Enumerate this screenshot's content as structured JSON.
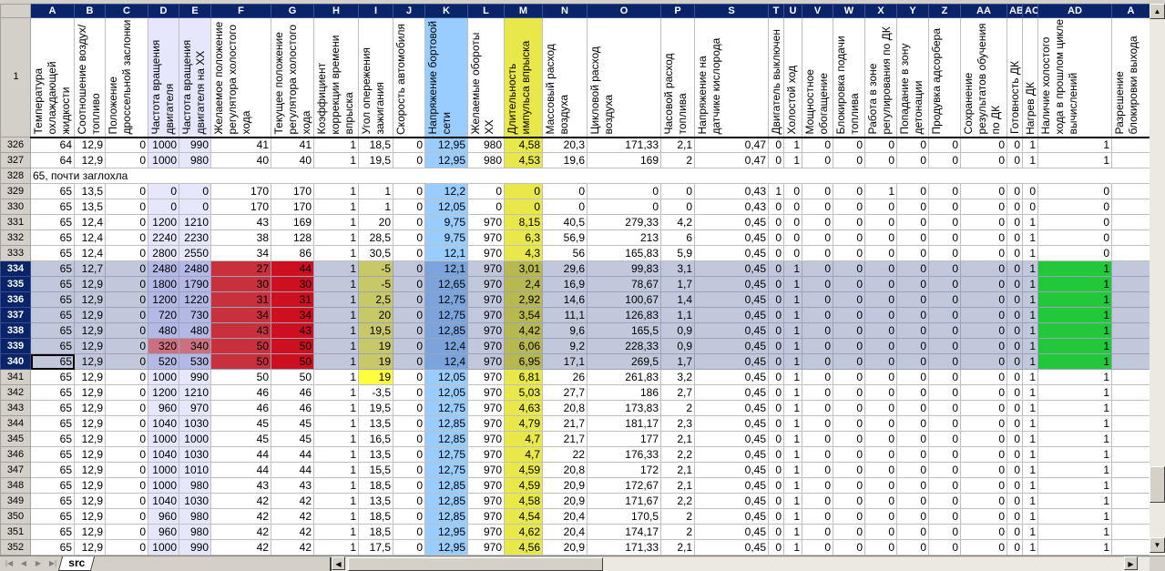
{
  "sheet": {
    "tab_name": "src",
    "active_cell": "A340",
    "selected_rows": [
      334,
      335,
      336,
      337,
      338,
      339,
      340
    ]
  },
  "columns": [
    {
      "letter": "A",
      "header": "Температура охлаждающей жидкости"
    },
    {
      "letter": "B",
      "header": "Соотношение воздух/топливо"
    },
    {
      "letter": "C",
      "header": "Положение дроссельной заслонки"
    },
    {
      "letter": "D",
      "header": "Частота вращения двигателя"
    },
    {
      "letter": "E",
      "header": "Частота вращения двигателя на XX"
    },
    {
      "letter": "F",
      "header": "Желаемое положение регулятора холостого хода"
    },
    {
      "letter": "G",
      "header": "Текущее положение регулятора холостого хода"
    },
    {
      "letter": "H",
      "header": "Коэффициент коррекции времени впрыска"
    },
    {
      "letter": "I",
      "header": "Угол опережения зажигания"
    },
    {
      "letter": "J",
      "header": "Скорость автомобиля"
    },
    {
      "letter": "K",
      "header": "Напряжение бортовой сети"
    },
    {
      "letter": "L",
      "header": "Желаемые обороты XX"
    },
    {
      "letter": "M",
      "header": "Длительность импульса впрыска"
    },
    {
      "letter": "N",
      "header": "Массовый расход воздуха"
    },
    {
      "letter": "O",
      "header": "Цикловой расход воздуха"
    },
    {
      "letter": "P",
      "header": "Часовой расход топлива"
    },
    {
      "letter": "S",
      "header": "Напряжение на датчике кислорода"
    },
    {
      "letter": "T",
      "header": "Двигатель выключен"
    },
    {
      "letter": "U",
      "header": "Холостой ход"
    },
    {
      "letter": "V",
      "header": "Мощностное обогащение"
    },
    {
      "letter": "W",
      "header": "Блокировка подачи топлива"
    },
    {
      "letter": "X",
      "header": "Работа в зоне регулирования по ДК"
    },
    {
      "letter": "Y",
      "header": "Попадание в зону детонации"
    },
    {
      "letter": "Z",
      "header": "Продувка адсорбера"
    },
    {
      "letter": "AA",
      "header": "Сохранение результатов обучения по ДК"
    },
    {
      "letter": "AB",
      "header": "Готовность ДК"
    },
    {
      "letter": "AC",
      "header": "Нагрев ДК"
    },
    {
      "letter": "AD",
      "header": "Наличие холостого хода в прошлом цикле вычислений"
    },
    {
      "letter": "A",
      "header": "Разрешение блокировки выхода"
    }
  ],
  "header_row_number": "1",
  "rows": [
    {
      "num": "326",
      "cells": [
        "64",
        "12,9",
        "0",
        "1000",
        "990",
        "41",
        "41",
        "1",
        "18,5",
        "0",
        "12,95",
        "980",
        "4,58",
        "20,3",
        "171,33",
        "2,1",
        "0,47",
        "0",
        "1",
        "0",
        "0",
        "0",
        "0",
        "0",
        "0",
        "0",
        "1",
        "1",
        ""
      ]
    },
    {
      "num": "327",
      "cells": [
        "64",
        "12,9",
        "0",
        "1000",
        "980",
        "40",
        "40",
        "1",
        "19,5",
        "0",
        "12,95",
        "980",
        "4,53",
        "19,6",
        "169",
        "2",
        "0,47",
        "0",
        "1",
        "0",
        "0",
        "0",
        "0",
        "0",
        "0",
        "0",
        "1",
        "1",
        ""
      ]
    },
    {
      "num": "328",
      "note": "65, почти заглохла"
    },
    {
      "num": "329",
      "cells": [
        "65",
        "13,5",
        "0",
        "0",
        "0",
        "170",
        "170",
        "1",
        "1",
        "0",
        "12,2",
        "0",
        "0",
        "0",
        "0",
        "0",
        "0,43",
        "1",
        "0",
        "0",
        "0",
        "1",
        "0",
        "0",
        "0",
        "0",
        "0",
        "0",
        ""
      ]
    },
    {
      "num": "330",
      "cells": [
        "65",
        "13,5",
        "0",
        "0",
        "0",
        "170",
        "170",
        "1",
        "1",
        "0",
        "12,05",
        "0",
        "0",
        "0",
        "0",
        "0",
        "0,43",
        "0",
        "0",
        "0",
        "0",
        "0",
        "0",
        "0",
        "0",
        "0",
        "0",
        "0",
        ""
      ]
    },
    {
      "num": "331",
      "cells": [
        "65",
        "12,4",
        "0",
        "1200",
        "1210",
        "43",
        "169",
        "1",
        "20",
        "0",
        "9,75",
        "970",
        "8,15",
        "40,5",
        "279,33",
        "4,2",
        "0,45",
        "0",
        "0",
        "0",
        "0",
        "0",
        "0",
        "0",
        "0",
        "0",
        "1",
        "0",
        ""
      ]
    },
    {
      "num": "332",
      "cells": [
        "65",
        "12,4",
        "0",
        "2240",
        "2230",
        "38",
        "128",
        "1",
        "28,5",
        "0",
        "9,75",
        "970",
        "6,3",
        "56,9",
        "213",
        "6",
        "0,45",
        "0",
        "0",
        "0",
        "0",
        "0",
        "0",
        "0",
        "0",
        "0",
        "1",
        "0",
        ""
      ]
    },
    {
      "num": "333",
      "cells": [
        "65",
        "12,4",
        "0",
        "2800",
        "2550",
        "34",
        "86",
        "1",
        "30,5",
        "0",
        "12,1",
        "970",
        "4,3",
        "56",
        "165,83",
        "5,9",
        "0,45",
        "0",
        "0",
        "0",
        "0",
        "0",
        "0",
        "0",
        "0",
        "0",
        "1",
        "0",
        ""
      ]
    },
    {
      "num": "334",
      "cells": [
        "65",
        "12,7",
        "0",
        "2480",
        "2480",
        "27",
        "44",
        "1",
        "-5",
        "0",
        "12,1",
        "970",
        "3,01",
        "29,6",
        "99,83",
        "3,1",
        "0,45",
        "0",
        "1",
        "0",
        "0",
        "0",
        "0",
        "0",
        "0",
        "0",
        "1",
        "1",
        ""
      ]
    },
    {
      "num": "335",
      "cells": [
        "65",
        "12,9",
        "0",
        "1800",
        "1790",
        "30",
        "30",
        "1",
        "-5",
        "0",
        "12,65",
        "970",
        "2,4",
        "16,9",
        "78,67",
        "1,7",
        "0,45",
        "0",
        "1",
        "0",
        "0",
        "0",
        "0",
        "0",
        "0",
        "0",
        "1",
        "1",
        ""
      ]
    },
    {
      "num": "336",
      "cells": [
        "65",
        "12,9",
        "0",
        "1200",
        "1220",
        "31",
        "31",
        "1",
        "2,5",
        "0",
        "12,75",
        "970",
        "2,92",
        "14,6",
        "100,67",
        "1,4",
        "0,45",
        "0",
        "1",
        "0",
        "0",
        "0",
        "0",
        "0",
        "0",
        "0",
        "1",
        "1",
        ""
      ]
    },
    {
      "num": "337",
      "cells": [
        "65",
        "12,9",
        "0",
        "720",
        "730",
        "34",
        "34",
        "1",
        "20",
        "0",
        "12,75",
        "970",
        "3,54",
        "11,1",
        "126,83",
        "1,1",
        "0,45",
        "0",
        "1",
        "0",
        "0",
        "0",
        "0",
        "0",
        "0",
        "0",
        "1",
        "1",
        ""
      ]
    },
    {
      "num": "338",
      "cells": [
        "65",
        "12,9",
        "0",
        "480",
        "480",
        "43",
        "43",
        "1",
        "19,5",
        "0",
        "12,85",
        "970",
        "4,42",
        "9,6",
        "165,5",
        "0,9",
        "0,45",
        "0",
        "1",
        "0",
        "0",
        "0",
        "0",
        "0",
        "0",
        "0",
        "1",
        "1",
        ""
      ]
    },
    {
      "num": "339",
      "cells": [
        "65",
        "12,9",
        "0",
        "320",
        "340",
        "50",
        "50",
        "1",
        "19",
        "0",
        "12,4",
        "970",
        "6,06",
        "9,2",
        "228,33",
        "0,9",
        "0,45",
        "0",
        "1",
        "0",
        "0",
        "0",
        "0",
        "0",
        "0",
        "0",
        "1",
        "1",
        ""
      ]
    },
    {
      "num": "340",
      "cells": [
        "65",
        "12,9",
        "0",
        "520",
        "530",
        "50",
        "50",
        "1",
        "19",
        "0",
        "12,4",
        "970",
        "6,95",
        "17,1",
        "269,5",
        "1,7",
        "0,45",
        "0",
        "1",
        "0",
        "0",
        "0",
        "0",
        "0",
        "0",
        "0",
        "1",
        "1",
        ""
      ]
    },
    {
      "num": "341",
      "cells": [
        "65",
        "12,9",
        "0",
        "1000",
        "990",
        "50",
        "50",
        "1",
        "19",
        "0",
        "12,05",
        "970",
        "6,81",
        "26",
        "261,83",
        "3,2",
        "0,45",
        "0",
        "1",
        "0",
        "0",
        "0",
        "0",
        "0",
        "0",
        "0",
        "1",
        "1",
        ""
      ]
    },
    {
      "num": "342",
      "cells": [
        "65",
        "12,9",
        "0",
        "1200",
        "1210",
        "46",
        "46",
        "1",
        "-3,5",
        "0",
        "12,05",
        "970",
        "5,03",
        "27,7",
        "186",
        "2,7",
        "0,45",
        "0",
        "1",
        "0",
        "0",
        "0",
        "0",
        "0",
        "0",
        "0",
        "1",
        "1",
        ""
      ]
    },
    {
      "num": "343",
      "cells": [
        "65",
        "12,9",
        "0",
        "960",
        "970",
        "46",
        "46",
        "1",
        "19,5",
        "0",
        "12,75",
        "970",
        "4,63",
        "20,8",
        "173,83",
        "2",
        "0,45",
        "0",
        "1",
        "0",
        "0",
        "0",
        "0",
        "0",
        "0",
        "0",
        "1",
        "1",
        ""
      ]
    },
    {
      "num": "344",
      "cells": [
        "65",
        "12,9",
        "0",
        "1040",
        "1030",
        "45",
        "45",
        "1",
        "13,5",
        "0",
        "12,85",
        "970",
        "4,79",
        "21,7",
        "181,17",
        "2,3",
        "0,45",
        "0",
        "1",
        "0",
        "0",
        "0",
        "0",
        "0",
        "0",
        "0",
        "1",
        "1",
        ""
      ]
    },
    {
      "num": "345",
      "cells": [
        "65",
        "12,9",
        "0",
        "1000",
        "1000",
        "45",
        "45",
        "1",
        "16,5",
        "0",
        "12,85",
        "970",
        "4,7",
        "21,7",
        "177",
        "2,1",
        "0,45",
        "0",
        "1",
        "0",
        "0",
        "0",
        "0",
        "0",
        "0",
        "0",
        "1",
        "1",
        ""
      ]
    },
    {
      "num": "346",
      "cells": [
        "65",
        "12,9",
        "0",
        "1040",
        "1030",
        "44",
        "44",
        "1",
        "13,5",
        "0",
        "12,75",
        "970",
        "4,7",
        "22",
        "176,33",
        "2,2",
        "0,45",
        "0",
        "1",
        "0",
        "0",
        "0",
        "0",
        "0",
        "0",
        "0",
        "1",
        "1",
        ""
      ]
    },
    {
      "num": "347",
      "cells": [
        "65",
        "12,9",
        "0",
        "1000",
        "1010",
        "44",
        "44",
        "1",
        "15,5",
        "0",
        "12,75",
        "970",
        "4,59",
        "20,8",
        "172",
        "2,1",
        "0,45",
        "0",
        "1",
        "0",
        "0",
        "0",
        "0",
        "0",
        "0",
        "0",
        "1",
        "1",
        ""
      ]
    },
    {
      "num": "348",
      "cells": [
        "65",
        "12,9",
        "0",
        "1000",
        "980",
        "43",
        "43",
        "1",
        "18,5",
        "0",
        "12,85",
        "970",
        "4,59",
        "20,9",
        "172,67",
        "2,1",
        "0,45",
        "0",
        "1",
        "0",
        "0",
        "0",
        "0",
        "0",
        "0",
        "0",
        "1",
        "1",
        ""
      ]
    },
    {
      "num": "349",
      "cells": [
        "65",
        "12,9",
        "0",
        "1040",
        "1030",
        "42",
        "42",
        "1",
        "13,5",
        "0",
        "12,85",
        "970",
        "4,58",
        "20,9",
        "171,67",
        "2,2",
        "0,45",
        "0",
        "1",
        "0",
        "0",
        "0",
        "0",
        "0",
        "0",
        "0",
        "1",
        "1",
        ""
      ]
    },
    {
      "num": "350",
      "cells": [
        "65",
        "12,9",
        "0",
        "960",
        "980",
        "42",
        "42",
        "1",
        "18,5",
        "0",
        "12,85",
        "970",
        "4,54",
        "20,4",
        "170,5",
        "2",
        "0,45",
        "0",
        "1",
        "0",
        "0",
        "0",
        "0",
        "0",
        "0",
        "0",
        "1",
        "1",
        ""
      ]
    },
    {
      "num": "351",
      "cells": [
        "65",
        "12,9",
        "0",
        "960",
        "980",
        "42",
        "42",
        "1",
        "18,5",
        "0",
        "12,95",
        "970",
        "4,62",
        "20,4",
        "174,17",
        "2",
        "0,45",
        "0",
        "1",
        "0",
        "0",
        "0",
        "0",
        "0",
        "0",
        "0",
        "1",
        "1",
        ""
      ]
    },
    {
      "num": "352",
      "cells": [
        "65",
        "12,9",
        "0",
        "1000",
        "990",
        "42",
        "42",
        "1",
        "17,5",
        "0",
        "12,95",
        "970",
        "4,56",
        "20,9",
        "171,33",
        "2,1",
        "0,45",
        "0",
        "1",
        "0",
        "0",
        "0",
        "0",
        "0",
        "0",
        "0",
        "1",
        "1",
        ""
      ]
    }
  ],
  "colors": {
    "column_fills": {
      "3": "#e6e6fc",
      "4": "#e6e6fc",
      "10": "#99ccff",
      "12": "#e8e84a"
    },
    "selection": "#c2c8dc",
    "selection_column_fills": {
      "3": "#b4b8e4",
      "4": "#b4b8e4",
      "5": "#c8303c",
      "6": "#cc1020",
      "8": "#c8c868",
      "10": "#7ba4dc",
      "12": "#b8b850",
      "27": "#22c83a"
    },
    "cell_fills": [
      {
        "row": "339",
        "col": 3,
        "color": "#cc7080"
      },
      {
        "row": "339",
        "col": 4,
        "color": "#cc7080"
      },
      {
        "row": "341",
        "col": 8,
        "color": "#ffff40"
      }
    ]
  }
}
